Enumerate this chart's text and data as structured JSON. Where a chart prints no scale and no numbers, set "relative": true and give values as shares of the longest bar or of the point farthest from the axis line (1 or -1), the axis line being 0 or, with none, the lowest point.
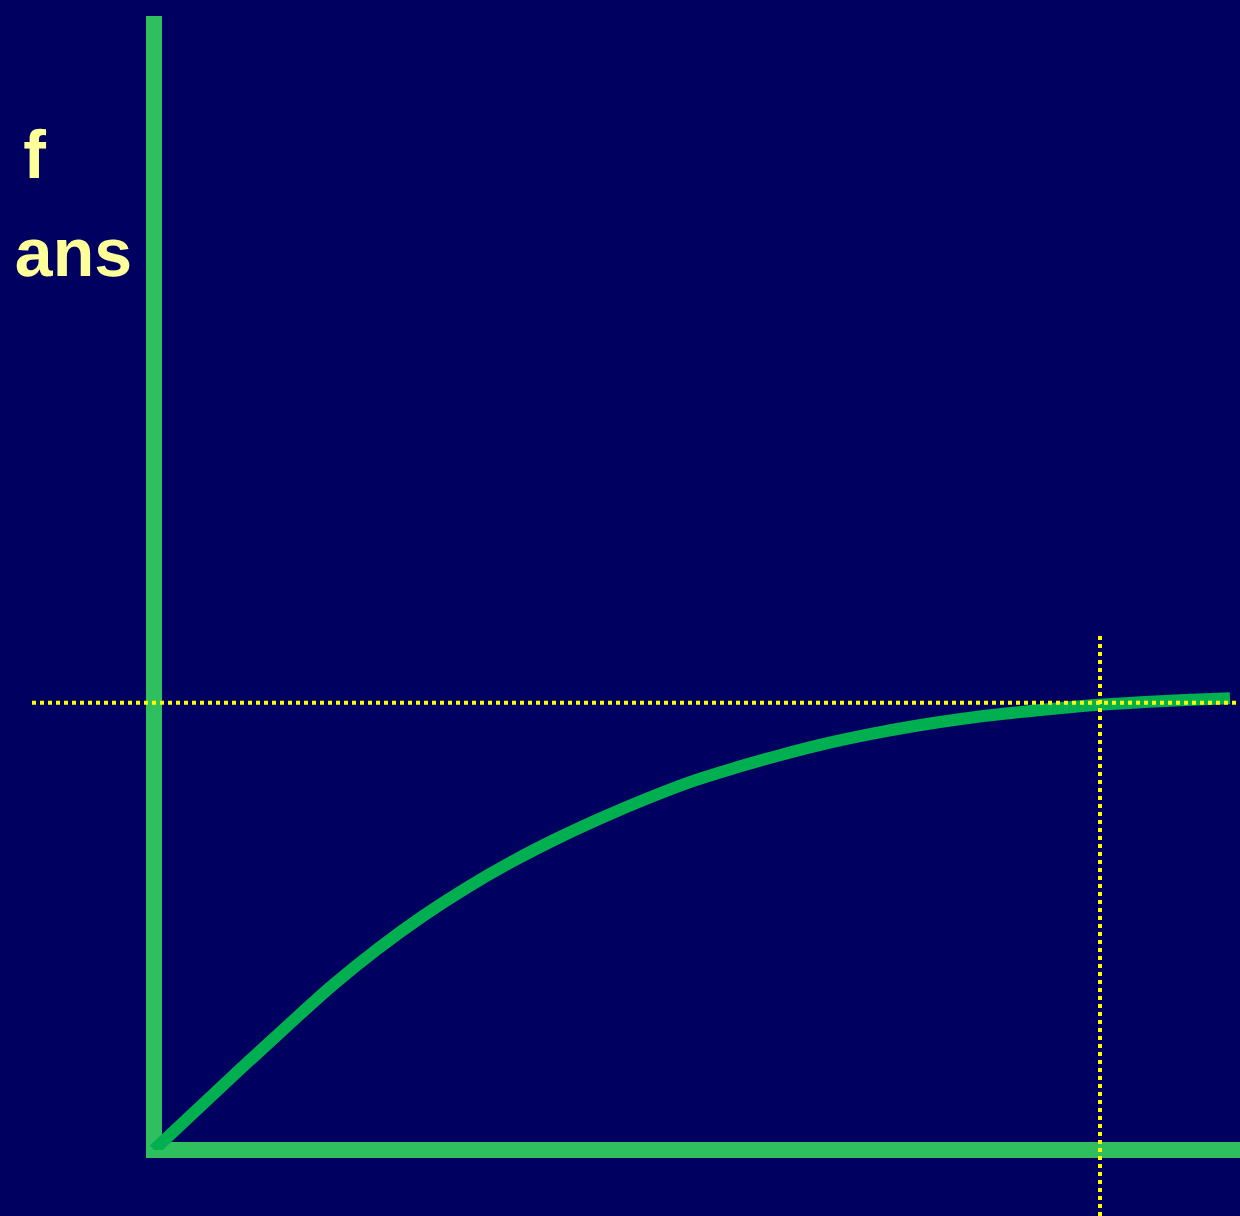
{
  "chart_data": {
    "type": "line",
    "relative": true,
    "categories": [
      null,
      null,
      null,
      null,
      null,
      null,
      null,
      null,
      null,
      null,
      null,
      null,
      null,
      null,
      null,
      null,
      null,
      null,
      null,
      null,
      null,
      null,
      null,
      null,
      null
    ],
    "series": [
      {
        "color": "#00b050",
        "values": [
          0,
          0.093,
          0.186,
          0.277,
          0.366,
          0.446,
          0.518,
          0.582,
          0.639,
          0.69,
          0.736,
          0.778,
          0.816,
          0.847,
          0.875,
          0.9,
          0.921,
          0.939,
          0.954,
          0.966,
          0.976,
          0.985,
          0.991,
          0.996,
          1
        ]
      }
    ],
    "ref_lines": [
      {
        "axis": "y",
        "value": 0.99,
        "color": "#ffff00",
        "line_style": "dotted"
      }
    ],
    "annotations": [
      "f",
      "ans"
    ],
    "marker": "none",
    "line_style": "solid"
  }
}
